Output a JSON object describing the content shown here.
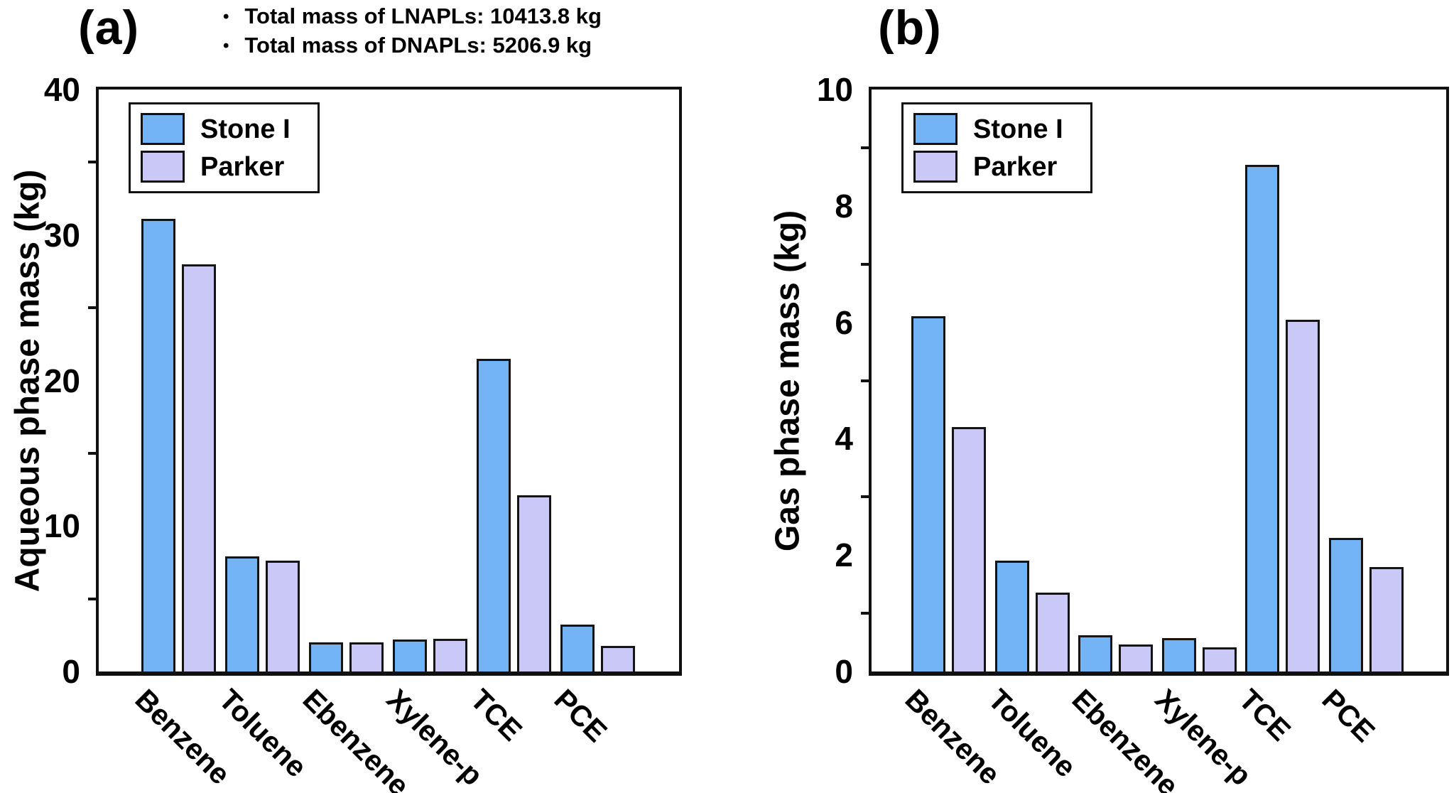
{
  "figure": {
    "background": "#ffffff",
    "axis_color": "#111111"
  },
  "annotations": {
    "bullet": "•",
    "items": [
      "Total mass of LNAPLs: 10413.8 kg",
      "Total mass of DNAPLs: 5206.9 kg"
    ]
  },
  "legend": {
    "items": [
      {
        "label": "Stone I",
        "color": "#72B4F5"
      },
      {
        "label": "Parker",
        "color": "#CAC8F6"
      }
    ]
  },
  "chart_data": [
    {
      "type": "bar",
      "panel_label": "(a)",
      "title": "",
      "xlabel": "",
      "ylabel": "Aqueous phase mass (kg)",
      "ylim": [
        0,
        40
      ],
      "yticks": [
        0,
        10,
        20,
        30,
        40
      ],
      "minor_tick_step": 5,
      "grid": false,
      "legend_position": "upper-left",
      "categories": [
        "Benzene",
        "Toluene",
        "Ebenzene",
        "Xylene-p",
        "TCE",
        "PCE"
      ],
      "series": [
        {
          "name": "Stone I",
          "color": "#72B4F5",
          "values": [
            31.1,
            7.9,
            2.0,
            2.2,
            21.5,
            3.2
          ]
        },
        {
          "name": "Parker",
          "color": "#CAC8F6",
          "values": [
            28.0,
            7.6,
            2.0,
            2.25,
            12.1,
            1.75
          ]
        }
      ]
    },
    {
      "type": "bar",
      "panel_label": "(b)",
      "title": "",
      "xlabel": "",
      "ylabel": "Gas phase mass (kg)",
      "ylim": [
        0,
        10
      ],
      "yticks": [
        0,
        2,
        4,
        6,
        8,
        10
      ],
      "minor_tick_step": 1,
      "grid": false,
      "legend_position": "upper-left",
      "categories": [
        "Benzene",
        "Toluene",
        "Ebenzene",
        "Xylene-p",
        "TCE",
        "PCE"
      ],
      "series": [
        {
          "name": "Stone I",
          "color": "#72B4F5",
          "values": [
            6.1,
            1.9,
            0.62,
            0.57,
            8.7,
            2.3
          ]
        },
        {
          "name": "Parker",
          "color": "#CAC8F6",
          "values": [
            4.2,
            1.35,
            0.47,
            0.42,
            6.05,
            1.8
          ]
        }
      ]
    }
  ]
}
